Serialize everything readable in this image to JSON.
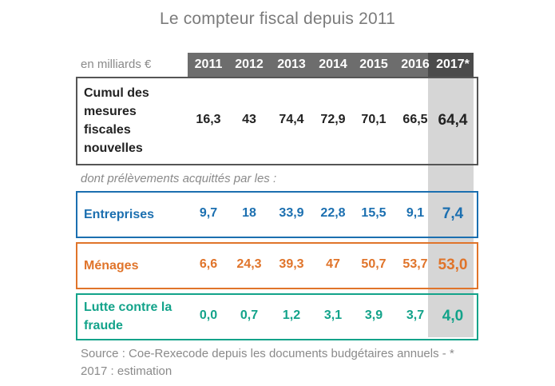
{
  "title": "Le compteur fiscal depuis 2011",
  "unit_label": "en milliards €",
  "subheading": "dont prélèvements acquittés par les :",
  "source": "Source : Coe-Rexecode depuis les documents budgétaires annuels - * 2017 : estimation",
  "colors": {
    "header": "#6d6d6d",
    "header_2017": "#4b4b4b",
    "highlight_2017": "#d6d6d6",
    "total": "#222222",
    "entreprises": "#1b6fb0",
    "menages": "#e0742a",
    "fraude": "#13a38a"
  },
  "chart_data": {
    "type": "table",
    "title": "Le compteur fiscal depuis 2011",
    "unit": "en milliards €",
    "columns": [
      "2011",
      "2012",
      "2013",
      "2014",
      "2015",
      "2016",
      "2017*"
    ],
    "rows": [
      {
        "label": "Cumul des mesures fiscales nouvelles",
        "label_lines": [
          "Cumul des",
          "mesures",
          "fiscales",
          "nouvelles"
        ],
        "display": [
          "16,3",
          "43",
          "74,4",
          "72,9",
          "70,1",
          "66,5",
          "64,4"
        ],
        "values": [
          16.3,
          43,
          74.4,
          72.9,
          70.1,
          66.5,
          64.4
        ]
      },
      {
        "label": "Entreprises",
        "label_lines": [
          "Entreprises"
        ],
        "display": [
          "9,7",
          "18",
          "33,9",
          "22,8",
          "15,5",
          "9,1",
          "7,4"
        ],
        "values": [
          9.7,
          18,
          33.9,
          22.8,
          15.5,
          9.1,
          7.4
        ]
      },
      {
        "label": "Ménages",
        "label_lines": [
          "Ménages"
        ],
        "display": [
          "6,6",
          "24,3",
          "39,3",
          "47",
          "50,7",
          "53,7",
          "53,0"
        ],
        "values": [
          6.6,
          24.3,
          39.3,
          47,
          50.7,
          53.7,
          53.0
        ]
      },
      {
        "label": "Lutte contre la fraude",
        "label_lines": [
          "Lutte contre la",
          "fraude"
        ],
        "display": [
          "0,0",
          "0,7",
          "1,2",
          "3,1",
          "3,9",
          "3,7",
          "4,0"
        ],
        "values": [
          0.0,
          0.7,
          1.2,
          3.1,
          3.9,
          3.7,
          4.0
        ]
      }
    ]
  }
}
